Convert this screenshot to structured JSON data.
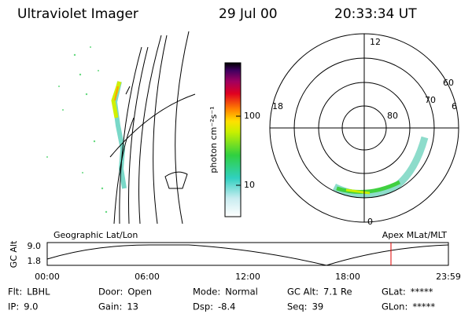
{
  "header": {
    "title": "Ultraviolet Imager",
    "date": "29 Jul 00",
    "time": "20:33:34 UT"
  },
  "colorbar": {
    "label": "photon cm⁻²s⁻¹",
    "ticks": [
      "100",
      "10"
    ]
  },
  "polar": {
    "mlt_labels": [
      "12",
      "18",
      "6",
      "0"
    ],
    "lat_labels": [
      "60",
      "70",
      "80"
    ]
  },
  "map_label": "Geographic Lat/Lon",
  "polar_label": "Apex MLat/MLT",
  "altitude": {
    "axis_label": "GC Alt",
    "ticks": [
      "9.0",
      "1.8"
    ]
  },
  "time_axis": [
    "00:00",
    "06:00",
    "12:00",
    "18:00",
    "23:59"
  ],
  "status": [
    [
      {
        "label": "Flt:",
        "value": "LBHL"
      },
      {
        "label": "Door:",
        "value": "Open"
      },
      {
        "label": "Mode:",
        "value": "Normal"
      },
      {
        "label": "GC Alt:",
        "value": "7.1 Re"
      },
      {
        "label": "GLat:",
        "value": "*****"
      }
    ],
    [
      {
        "label": "IP:",
        "value": "9.0"
      },
      {
        "label": "Gain:",
        "value": "13"
      },
      {
        "label": "Dsp:",
        "value": "-8.4"
      },
      {
        "label": "Seq:",
        "value": "39"
      },
      {
        "label": "GLon:",
        "value": "*****"
      }
    ]
  ]
}
